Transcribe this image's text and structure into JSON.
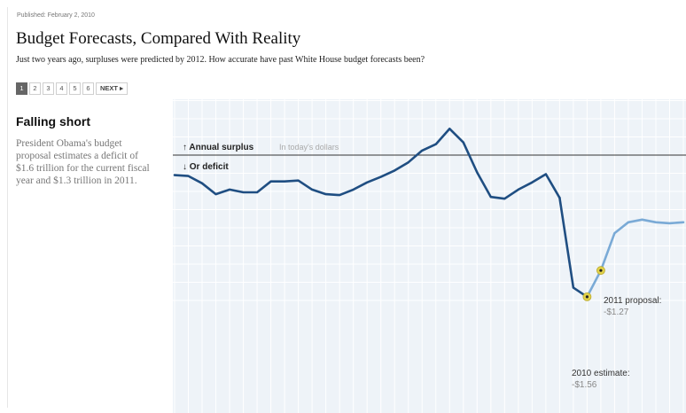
{
  "header": {
    "published": "Published: February 2, 2010",
    "title": "Budget Forecasts, Compared With Reality",
    "subtitle": "Just two years ago, surpluses were predicted by 2012. How accurate have past White House budget forecasts been?"
  },
  "pager": {
    "pages": [
      "1",
      "2",
      "3",
      "4",
      "5",
      "6"
    ],
    "active": "1",
    "next_label": "NEXT ▸"
  },
  "sidebar": {
    "heading": "Falling short",
    "body": "President Obama's budget proposal estimates a deficit of $1.6 trillion for the current fiscal year and $1.3 trillion in 2011."
  },
  "colors": {
    "historical_line": "#1f4e82",
    "projection_line": "#7aaad6",
    "highlight_point": "#e2d24a",
    "plot_background": "#eef3f8",
    "gridline": "#ffffff"
  },
  "chart_data": {
    "type": "line",
    "grid": true,
    "legend_surplus_label": "Annual surplus",
    "legend_surplus_sub": "In today's dollars",
    "legend_deficit_label": "Or deficit",
    "ylim": [
      -1.7,
      0.5
    ],
    "xlim": [
      0,
      37
    ],
    "series": [
      {
        "style": "actual",
        "x": [
          0,
          1,
          2,
          3,
          4,
          5,
          6,
          7,
          8,
          9,
          10,
          11,
          12,
          13,
          14,
          15,
          16,
          17,
          18,
          19,
          20,
          21,
          22,
          23,
          24,
          25,
          26,
          27,
          28
        ],
        "values": [
          -0.22,
          -0.23,
          -0.31,
          -0.43,
          -0.38,
          -0.41,
          -0.41,
          -0.29,
          -0.29,
          -0.28,
          -0.38,
          -0.43,
          -0.44,
          -0.38,
          -0.3,
          -0.24,
          -0.17,
          -0.08,
          0.05,
          0.12,
          0.29,
          0.14,
          -0.19,
          -0.46,
          -0.48,
          -0.38,
          -0.3,
          -0.21,
          -0.47
        ]
      },
      {
        "style": "actual",
        "x": [
          28,
          29,
          30
        ],
        "values": [
          -0.47,
          -1.46,
          -1.56
        ]
      },
      {
        "style": "projection",
        "x": [
          30,
          31,
          32,
          33,
          34,
          35,
          36,
          37
        ],
        "values": [
          -1.56,
          -1.27,
          -0.86,
          -0.74,
          -0.71,
          -0.74,
          -0.75,
          -0.74
        ]
      }
    ],
    "annotations": [
      {
        "x": 30,
        "y": -1.56,
        "label": "2010 estimate:",
        "value": "-$1.56"
      },
      {
        "x": 31,
        "y": -1.27,
        "label": "2011 proposal:",
        "value": "-$1.27"
      }
    ]
  }
}
